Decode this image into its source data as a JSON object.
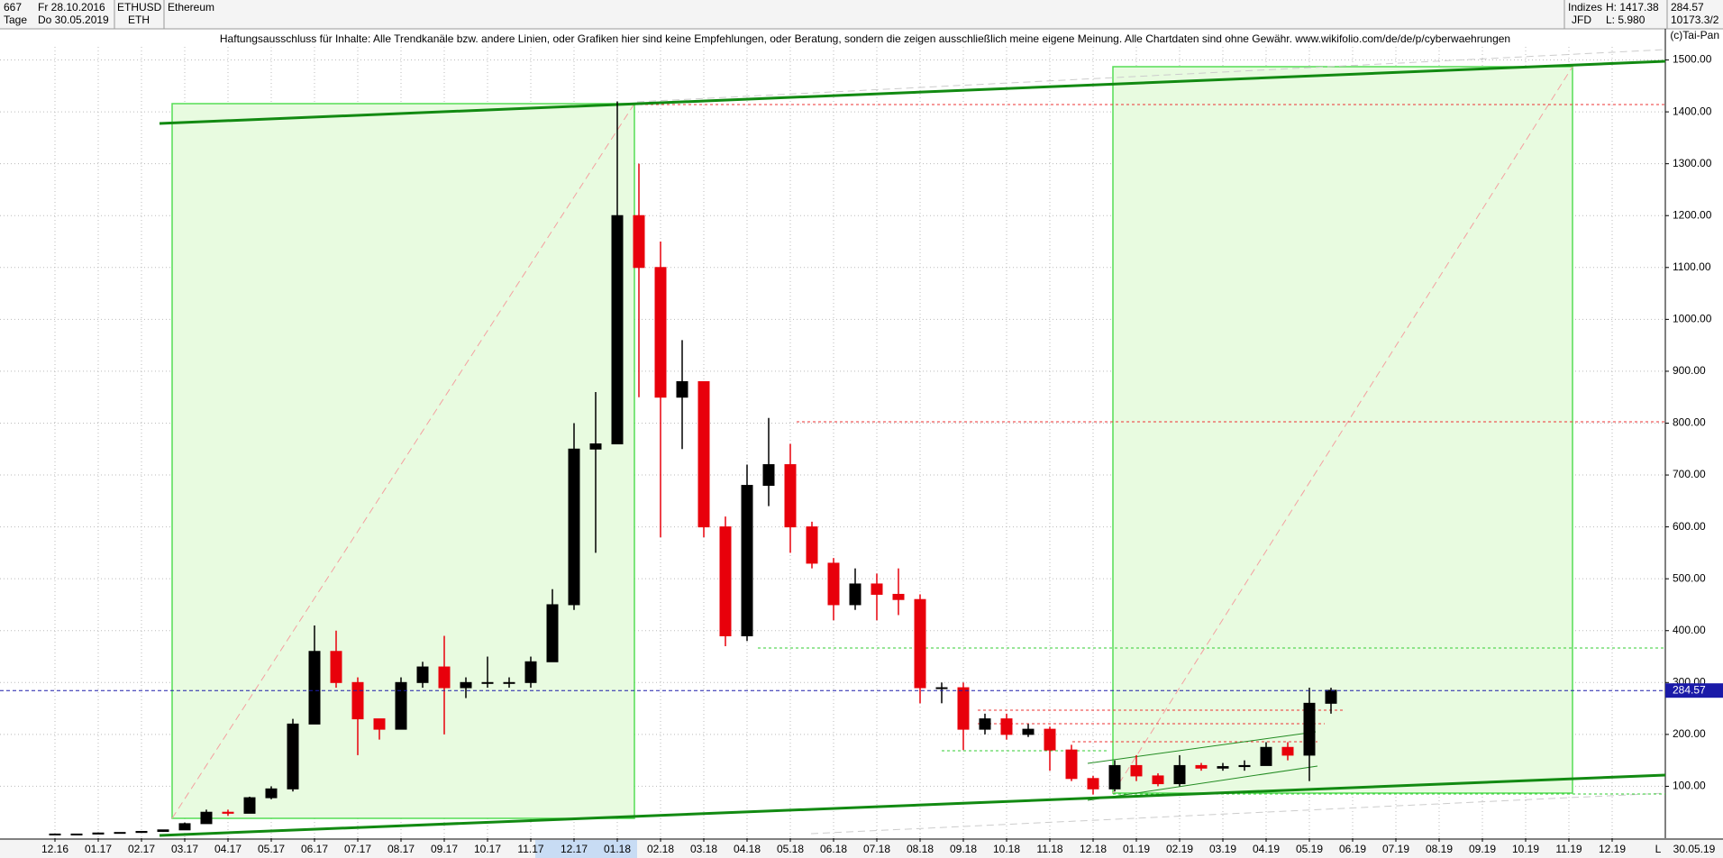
{
  "header": {
    "count": "667",
    "start": "Fr 28.10.2016",
    "period": "Tage",
    "end": "Do 30.05.2019",
    "symbol": "ETHUSD",
    "short": "ETH",
    "group": "Indizes",
    "source": "JFD",
    "high": "H: 1417.38",
    "low": "L: 5.980",
    "last": "284.57",
    "volume": "10173.3/2",
    "copyright": "(c)Tai-Pan",
    "last_date": "30.05.19",
    "scale_mode": "L"
  },
  "chart_data": {
    "type": "candlestick",
    "title": "Ethereum",
    "annotation": "Haftungsausschluss für Inhalte: Alle Trendkanäle bzw. andere Linien, oder Grafiken hier sind keine Empfehlungen, oder Beratung, sondern die zeigen ausschließlich meine eigene Meinung. Alle Chartdaten sind ohne Gewähr.  www.wikifolio.com/de/de/p/cyberwaehrungen",
    "categories": [
      "12.16",
      null,
      "01.17",
      null,
      "02.17",
      null,
      "03.17",
      null,
      "04.17",
      null,
      "05.17",
      null,
      "06.17",
      null,
      "07.17",
      null,
      "08.17",
      null,
      "09.17",
      null,
      "10.17",
      null,
      "11.17",
      null,
      "12.17",
      null,
      "01.18",
      null,
      "02.18",
      null,
      "03.18",
      null,
      "04.18",
      null,
      "05.18",
      null,
      "06.18",
      null,
      "07.18",
      null,
      "08.18",
      null,
      "09.18",
      null,
      "10.18",
      null,
      "11.18",
      null,
      "12.18",
      null,
      "01.19",
      null,
      "02.19",
      null,
      "03.19",
      null,
      "04.19",
      null,
      "05.19",
      null,
      "06.19",
      null,
      "07.19",
      null,
      "08.19",
      null,
      "09.19",
      null,
      "10.19",
      null,
      "11.19",
      null,
      "12.19",
      null
    ],
    "open": [
      8,
      8,
      8,
      10,
      11,
      13,
      16,
      28,
      50,
      48,
      78,
      95,
      220,
      360,
      300,
      230,
      210,
      300,
      330,
      290,
      300,
      300,
      300,
      340,
      450,
      750,
      760,
      1200,
      1100,
      850,
      880,
      600,
      390,
      680,
      720,
      600,
      530,
      450,
      490,
      470,
      460,
      290,
      290,
      210,
      230,
      200,
      210,
      170,
      115,
      95,
      140,
      120,
      105,
      140,
      135,
      138,
      140,
      175,
      160,
      260,
      null,
      null,
      null,
      null,
      null,
      null,
      null,
      null,
      null,
      null,
      null,
      null,
      null,
      null
    ],
    "high": [
      8,
      8,
      11,
      11,
      13,
      16,
      30,
      55,
      55,
      80,
      100,
      230,
      410,
      400,
      310,
      230,
      310,
      340,
      390,
      310,
      350,
      310,
      350,
      480,
      800,
      860,
      1420,
      1300,
      1150,
      960,
      880,
      620,
      720,
      810,
      760,
      610,
      540,
      520,
      510,
      520,
      470,
      300,
      300,
      240,
      240,
      220,
      215,
      180,
      120,
      150,
      160,
      125,
      160,
      145,
      145,
      150,
      185,
      185,
      290,
      290,
      null,
      null,
      null,
      null,
      null,
      null,
      null,
      null,
      null,
      null,
      null,
      null,
      null,
      null
    ],
    "low": [
      7,
      7,
      8,
      10,
      11,
      12,
      16,
      28,
      43,
      48,
      75,
      90,
      220,
      290,
      160,
      190,
      210,
      290,
      200,
      270,
      290,
      290,
      290,
      340,
      440,
      550,
      760,
      850,
      580,
      750,
      580,
      370,
      380,
      640,
      550,
      520,
      420,
      440,
      420,
      430,
      260,
      260,
      170,
      200,
      190,
      195,
      130,
      110,
      84,
      90,
      110,
      100,
      100,
      130,
      130,
      130,
      140,
      150,
      110,
      240,
      null,
      null,
      null,
      null,
      null,
      null,
      null,
      null,
      null,
      null,
      null,
      null,
      null,
      null
    ],
    "close": [
      8,
      8,
      10,
      11,
      13,
      16,
      28,
      50,
      48,
      78,
      95,
      220,
      360,
      300,
      230,
      210,
      300,
      330,
      290,
      300,
      300,
      300,
      340,
      450,
      750,
      760,
      1200,
      1100,
      850,
      880,
      600,
      390,
      680,
      720,
      600,
      530,
      450,
      490,
      470,
      460,
      290,
      290,
      210,
      230,
      200,
      210,
      170,
      115,
      95,
      140,
      120,
      105,
      140,
      135,
      138,
      140,
      175,
      160,
      260,
      285,
      null,
      null,
      null,
      null,
      null,
      null,
      null,
      null,
      null,
      null,
      null,
      null,
      null,
      null
    ],
    "up_color": "#000000",
    "down_color": "#e8000b",
    "last_price": 284.57,
    "ylim": [
      0,
      1560
    ],
    "yticks": [
      {
        "value": 100,
        "label": "100.00"
      },
      {
        "value": 200,
        "label": "200.00"
      },
      {
        "value": 300,
        "label": "300.00"
      },
      {
        "value": 400,
        "label": "400.00"
      },
      {
        "value": 500,
        "label": "500.00"
      },
      {
        "value": 600,
        "label": "600.00"
      },
      {
        "value": 700,
        "label": "700.00"
      },
      {
        "value": 800,
        "label": "800.00"
      },
      {
        "value": 900,
        "label": "900.00"
      },
      {
        "value": 1000,
        "label": "1000.00"
      },
      {
        "value": 1100,
        "label": "1100.00"
      },
      {
        "value": 1200,
        "label": "1200.00"
      },
      {
        "value": 1300,
        "label": "1300.00"
      },
      {
        "value": 1400,
        "label": "1400.00"
      },
      {
        "value": 1500,
        "label": "1500.00"
      }
    ],
    "grid": true
  }
}
